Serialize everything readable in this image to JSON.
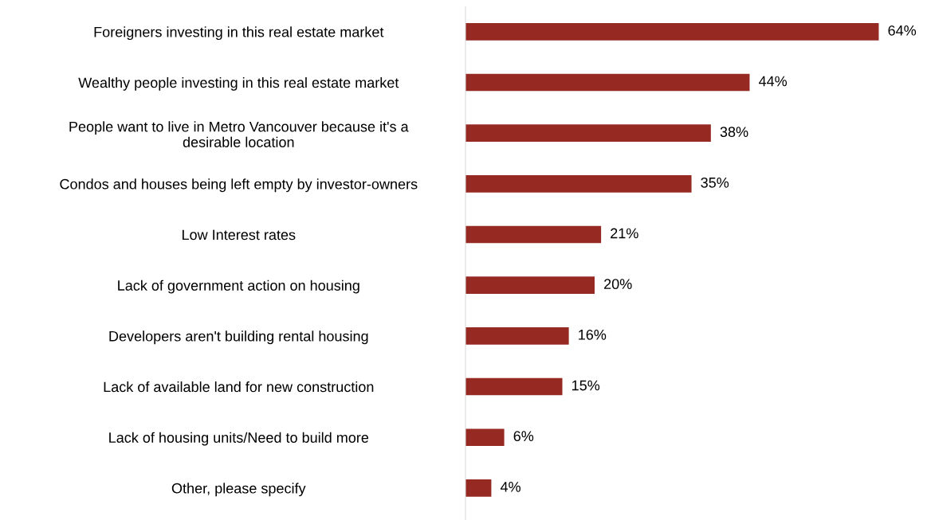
{
  "chart_data": {
    "type": "bar",
    "orientation": "horizontal",
    "categories": [
      "Foreigners investing in this real estate market",
      "Wealthy people investing in this real estate market",
      "People want to live in Metro Vancouver because it's a\ndesirable location",
      "Condos and houses being left empty by investor-owners",
      "Low Interest rates",
      "Lack of government action on housing",
      "Developers aren't building rental housing",
      "Lack of available land for new construction",
      "Lack of housing units/Need to build more",
      "Other, please specify"
    ],
    "values": [
      64,
      44,
      38,
      35,
      21,
      20,
      16,
      15,
      6,
      4
    ],
    "value_labels": [
      "64%",
      "44%",
      "38%",
      "35%",
      "21%",
      "20%",
      "16%",
      "15%",
      "6%",
      "4%"
    ],
    "color": "#962a23",
    "grid": false,
    "legend": false
  }
}
